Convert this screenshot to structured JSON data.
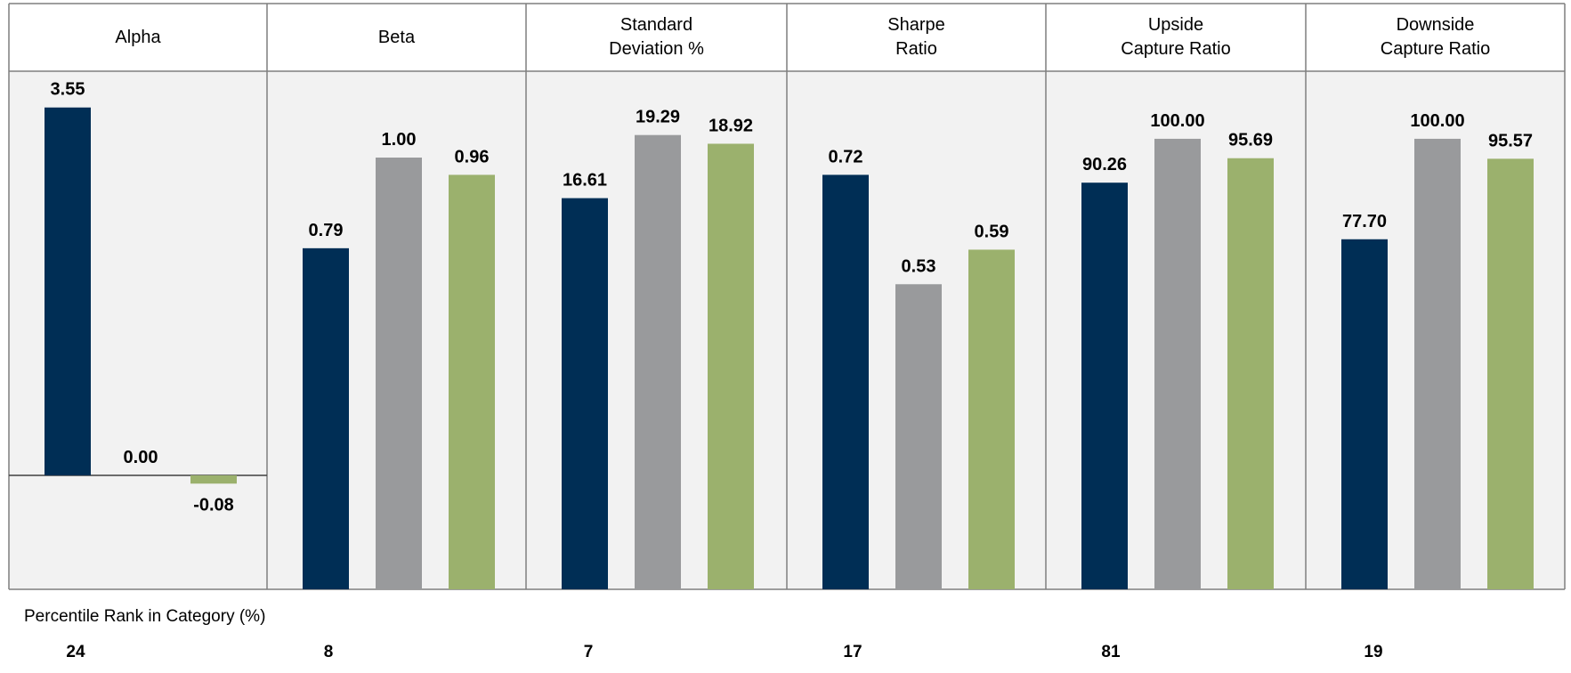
{
  "chart_data": {
    "type": "bar",
    "series_colors": [
      "#002e55",
      "#999a9c",
      "#9bb16d"
    ],
    "panels": [
      {
        "category": "Alpha",
        "values": [
          3.55,
          0.0,
          -0.08
        ],
        "labels": [
          "3.55",
          "0.00",
          "-0.08"
        ],
        "ylim": [
          -1.1,
          3.9
        ],
        "zero_line": true
      },
      {
        "category": "Beta",
        "values": [
          0.79,
          1.0,
          0.96
        ],
        "labels": [
          "0.79",
          "1.00",
          "0.96"
        ],
        "ylim": [
          0,
          1.2
        ]
      },
      {
        "category": "Standard\nDeviation %",
        "values": [
          16.61,
          19.29,
          18.92
        ],
        "labels": [
          "16.61",
          "19.29",
          "18.92"
        ],
        "ylim": [
          0,
          22
        ]
      },
      {
        "category": "Sharpe\nRatio",
        "values": [
          0.72,
          0.53,
          0.59
        ],
        "labels": [
          "0.72",
          "0.53",
          "0.59"
        ],
        "ylim": [
          0,
          0.9
        ]
      },
      {
        "category": "Upside\nCapture Ratio",
        "values": [
          90.26,
          100.0,
          95.69
        ],
        "labels": [
          "90.26",
          "100.00",
          "95.69"
        ],
        "ylim": [
          0,
          115
        ]
      },
      {
        "category": "Downside\nCapture Ratio",
        "values": [
          77.7,
          100.0,
          95.57
        ],
        "labels": [
          "77.70",
          "100.00",
          "95.57"
        ],
        "ylim": [
          0,
          115
        ]
      }
    ]
  },
  "percentile": {
    "title": "Percentile Rank in Category (%)",
    "values": [
      "24",
      "8",
      "7",
      "17",
      "81",
      "19"
    ]
  }
}
